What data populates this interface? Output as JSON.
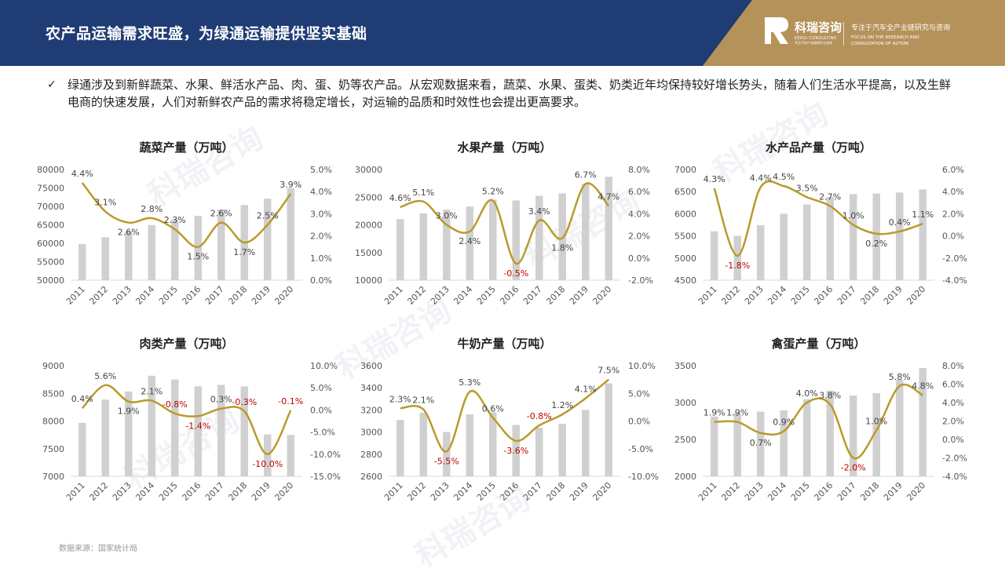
{
  "header": {
    "title": "农产品运输需求旺盛，为绿通运输提供坚实基础",
    "logo_name": "科瑞咨询",
    "logo_sub": "KERUI CONSULTING",
    "logo_sub2": "专注汽车产业链研究与咨询",
    "tagline": "专注于汽车全产业链研究与咨询",
    "tagline_en_1": "FOCUS ON THE RESEARCH AND",
    "tagline_en_2": "CONSULTATION OF AUTOM",
    "colors": {
      "navy": "#1f3c74",
      "gold": "#b5925a"
    }
  },
  "bullet": {
    "icon": "check-icon",
    "text": "绿通涉及到新鲜蔬菜、水果、鲜活水产品、肉、蛋、奶等农产品。从宏观数据来看，蔬菜、水果、蛋类、奶类近年均保持较好增长势头，随着人们生活水平提高，以及生鲜电商的快速发展，人们对新鲜农产品的需求将稳定增长，对运输的品质和时效性也会提出更高要求。"
  },
  "source": "数据来源：国家统计局",
  "chart_data": [
    {
      "type": "bar+line",
      "title": "蔬菜产量（万吨）",
      "categories": [
        "2011",
        "2012",
        "2013",
        "2014",
        "2015",
        "2016",
        "2017",
        "2018",
        "2019",
        "2020"
      ],
      "bar_values": [
        59767,
        61624,
        63198,
        64949,
        66425,
        67434,
        69193,
        70346,
        72103,
        74913
      ],
      "line_values": [
        4.4,
        3.1,
        2.6,
        2.8,
        2.3,
        1.5,
        2.6,
        1.7,
        2.5,
        3.9
      ],
      "line_labels": [
        "4.4%",
        "3.1%",
        "2.6%",
        "2.8%",
        "2.3%",
        "1.5%",
        "2.6%",
        "1.7%",
        "2.5%",
        "3.9%"
      ],
      "left_ticks": [
        "80000",
        "75000",
        "70000",
        "65000",
        "60000",
        "55000",
        "50000"
      ],
      "right_ticks": [
        "5.0%",
        "4.0%",
        "3.0%",
        "2.0%",
        "1.0%",
        "0.0%"
      ],
      "ylim_left": [
        50000,
        80000
      ],
      "ylim_right": [
        0,
        5
      ]
    },
    {
      "type": "bar+line",
      "title": "水果产量（万吨）",
      "categories": [
        "2011",
        "2012",
        "2013",
        "2014",
        "2015",
        "2016",
        "2017",
        "2018",
        "2019",
        "2020"
      ],
      "bar_values": [
        21018,
        22092,
        22748,
        23303,
        24525,
        24405,
        25242,
        25688,
        27401,
        28692
      ],
      "line_values": [
        4.6,
        5.1,
        3.0,
        2.4,
        5.2,
        -0.5,
        3.4,
        1.8,
        6.7,
        4.7
      ],
      "line_labels": [
        "4.6%",
        "5.1%",
        "3.0%",
        "2.4%",
        "5.2%",
        "-0.5%",
        "3.4%",
        "1.8%",
        "6.7%",
        "4.7%"
      ],
      "left_ticks": [
        "30000",
        "25000",
        "20000",
        "15000",
        "10000"
      ],
      "right_ticks": [
        "8.0%",
        "6.0%",
        "4.0%",
        "2.0%",
        "0.0%",
        "-2.0%"
      ],
      "ylim_left": [
        10000,
        30000
      ],
      "ylim_right": [
        -2,
        8
      ]
    },
    {
      "type": "bar+line",
      "title": "水产品产量（万吨）",
      "categories": [
        "2011",
        "2012",
        "2013",
        "2014",
        "2015",
        "2016",
        "2017",
        "2018",
        "2019",
        "2020"
      ],
      "bar_values": [
        5603,
        5502,
        5744,
        6002,
        6211,
        6379,
        6445,
        6458,
        6480,
        6549
      ],
      "line_values": [
        4.3,
        -1.8,
        4.4,
        4.5,
        3.5,
        2.7,
        1.0,
        0.2,
        0.4,
        1.1
      ],
      "line_labels": [
        "4.3%",
        "-1.8%",
        "4.4%",
        "4.5%",
        "3.5%",
        "2.7%",
        "1.0%",
        "0.2%",
        "0.4%",
        "1.1%"
      ],
      "left_ticks": [
        "7000",
        "6500",
        "6000",
        "5500",
        "5000",
        "4500"
      ],
      "right_ticks": [
        "6.0%",
        "4.0%",
        "2.0%",
        "0.0%",
        "-2.0%",
        "-4.0%"
      ],
      "ylim_left": [
        4500,
        7000
      ],
      "ylim_right": [
        -4,
        6
      ]
    },
    {
      "type": "bar+line",
      "title": "肉类产量（万吨）",
      "categories": [
        "2011",
        "2012",
        "2013",
        "2014",
        "2015",
        "2016",
        "2017",
        "2018",
        "2019",
        "2020"
      ],
      "bar_values": [
        7965,
        8387,
        8535,
        8818,
        8750,
        8628,
        8654,
        8625,
        7759,
        7748
      ],
      "line_values": [
        0.4,
        5.6,
        1.9,
        2.1,
        -0.8,
        -1.4,
        0.3,
        -0.3,
        -10.0,
        -0.1
      ],
      "line_labels": [
        "0.4%",
        "5.6%",
        "1.9%",
        "2.1%",
        "-0.8%",
        "-1.4%",
        "0.3%",
        "-0.3%",
        "-10.0%",
        "-0.1%"
      ],
      "left_ticks": [
        "9000",
        "8500",
        "8000",
        "7500",
        "7000"
      ],
      "right_ticks": [
        "10.0%",
        "5.0%",
        "0.0%",
        "-5.0%",
        "-10.0%",
        "-15.0%"
      ],
      "ylim_left": [
        7000,
        9000
      ],
      "ylim_right": [
        -15,
        10
      ]
    },
    {
      "type": "bar+line",
      "title": "牛奶产量（万吨）",
      "categories": [
        "2011",
        "2012",
        "2013",
        "2014",
        "2015",
        "2016",
        "2017",
        "2018",
        "2019",
        "2020"
      ],
      "bar_values": [
        3110,
        3175,
        3001,
        3160,
        3180,
        3064,
        3039,
        3075,
        3201,
        3440
      ],
      "line_values": [
        2.3,
        2.1,
        -5.5,
        5.3,
        0.6,
        -3.6,
        -0.8,
        1.2,
        4.1,
        7.5
      ],
      "line_labels": [
        "2.3%",
        "2.1%",
        "-5.5%",
        "5.3%",
        "0.6%",
        "-3.6%",
        "-0.8%",
        "1.2%",
        "4.1%",
        "7.5%"
      ],
      "left_ticks": [
        "3600",
        "3400",
        "3200",
        "3000",
        "2800",
        "2600"
      ],
      "right_ticks": [
        "10.0%",
        "5.0%",
        "0.0%",
        "-5.0%",
        "-10.0%"
      ],
      "ylim_left": [
        2600,
        3600
      ],
      "ylim_right": [
        -10,
        10
      ]
    },
    {
      "type": "bar+line",
      "title": "禽蛋产量（万吨）",
      "categories": [
        "2011",
        "2012",
        "2013",
        "2014",
        "2015",
        "2016",
        "2017",
        "2018",
        "2019",
        "2020"
      ],
      "bar_values": [
        2811,
        2861,
        2876,
        2894,
        3046,
        3161,
        3096,
        3128,
        3309,
        3468
      ],
      "line_values": [
        1.9,
        1.9,
        0.7,
        0.9,
        4.0,
        3.8,
        -2.0,
        1.0,
        5.8,
        4.8
      ],
      "line_labels": [
        "1.9%",
        "1.9%",
        "0.7%",
        "0.9%",
        "4.0%",
        "3.8%",
        "-2.0%",
        "1.0%",
        "5.8%",
        "4.8%"
      ],
      "left_ticks": [
        "3500",
        "3000",
        "2500",
        "2000"
      ],
      "right_ticks": [
        "8.0%",
        "6.0%",
        "4.0%",
        "2.0%",
        "0.0%",
        "-2.0%",
        "-4.0%"
      ],
      "ylim_left": [
        2000,
        3500
      ],
      "ylim_right": [
        -4,
        8
      ]
    }
  ],
  "colors": {
    "bar": "#d0d0d0",
    "line": "#b89b2a",
    "negative_label": "#c00000",
    "label": "#444444"
  }
}
